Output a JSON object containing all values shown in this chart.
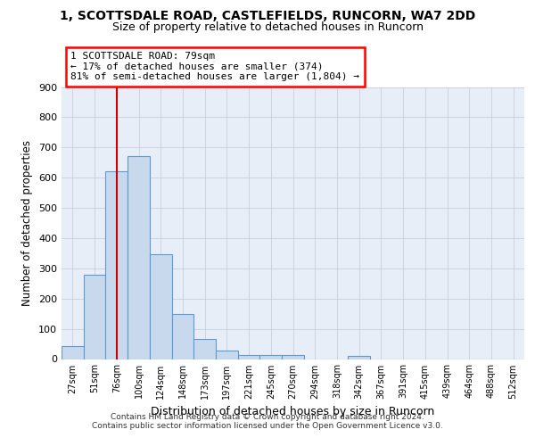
{
  "title1": "1, SCOTTSDALE ROAD, CASTLEFIELDS, RUNCORN, WA7 2DD",
  "title2": "Size of property relative to detached houses in Runcorn",
  "xlabel": "Distribution of detached houses by size in Runcorn",
  "ylabel": "Number of detached properties",
  "bar_color": "#c8d9ed",
  "bar_edge_color": "#5b9bd5",
  "categories": [
    "27sqm",
    "51sqm",
    "76sqm",
    "100sqm",
    "124sqm",
    "148sqm",
    "173sqm",
    "197sqm",
    "221sqm",
    "245sqm",
    "270sqm",
    "294sqm",
    "318sqm",
    "342sqm",
    "367sqm",
    "391sqm",
    "415sqm",
    "439sqm",
    "464sqm",
    "488sqm",
    "512sqm"
  ],
  "values": [
    42,
    280,
    622,
    670,
    348,
    148,
    65,
    28,
    14,
    12,
    12,
    0,
    0,
    10,
    0,
    0,
    0,
    0,
    0,
    0,
    0
  ],
  "property_line_bin": 2.0,
  "annotation_line1": "1 SCOTTSDALE ROAD: 79sqm",
  "annotation_line2": "← 17% of detached houses are smaller (374)",
  "annotation_line3": "81% of semi-detached houses are larger (1,804) →",
  "vline_color": "#cc0000",
  "ylim": [
    0,
    900
  ],
  "yticks": [
    0,
    100,
    200,
    300,
    400,
    500,
    600,
    700,
    800,
    900
  ],
  "footer": "Contains HM Land Registry data © Crown copyright and database right 2024.\nContains public sector information licensed under the Open Government Licence v3.0.",
  "bg_color": "#e8eef7",
  "grid_color": "#c0c8d8"
}
